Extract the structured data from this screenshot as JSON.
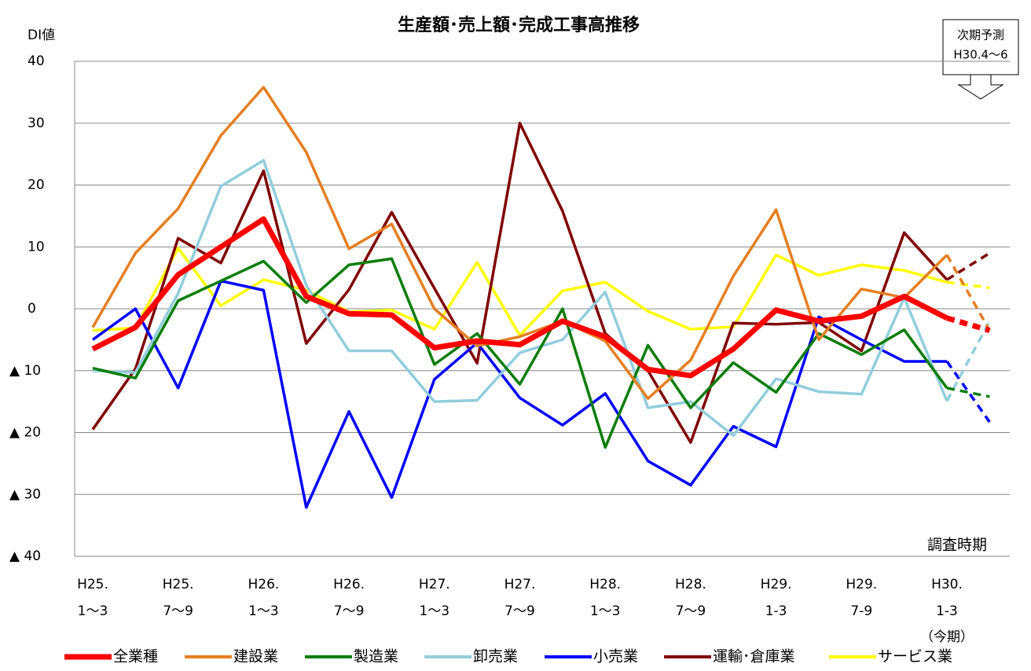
{
  "chart_data": {
    "type": "line",
    "title": "生産額･売上額･完成工事高推移",
    "y_label": "DI値",
    "x_label": "調査時期",
    "forecast_label": [
      "次期予測",
      "H30.4〜6"
    ],
    "categories": [
      "H25.\n1〜3",
      null,
      "H25.\n7〜9",
      null,
      "H26.\n1〜3",
      null,
      "H26.\n7〜9",
      null,
      "H27.\n1〜3",
      null,
      "H27.\n7〜9",
      null,
      "H28.\n1〜3",
      null,
      "H28.\n7〜9",
      null,
      "H29.\n1-3",
      null,
      "H29.\n7-9",
      null,
      "H30.\n1-3\n（今期）",
      null
    ],
    "dashed_from_index": 20,
    "ylim": [
      -40,
      40
    ],
    "yticks": [
      {
        "value": -40,
        "label": "▲ 40"
      },
      {
        "value": -30,
        "label": "▲ 30"
      },
      {
        "value": -20,
        "label": "▲ 20"
      },
      {
        "value": -10,
        "label": "▲ 10"
      },
      0,
      10,
      20,
      30,
      40
    ],
    "grid": true,
    "legend": "bottom",
    "series": [
      {
        "name": "全業種",
        "color": "#ff0000",
        "width": 7,
        "values": [
          -6.5,
          -3,
          5.5,
          10,
          14.5,
          2,
          -0.8,
          -1,
          -6.3,
          -5.2,
          -5.8,
          -2,
          -4.5,
          -9.8,
          -10.8,
          -6.5,
          -0.2,
          -2,
          -1.2,
          2,
          -1.5,
          -3.5
        ]
      },
      {
        "name": "建設業",
        "color": "#e67e22",
        "width": 3.5,
        "values": [
          -3,
          9,
          16.2,
          28,
          35.8,
          25.3,
          9.7,
          13.7,
          0,
          -6,
          -4.5,
          -2,
          -5.2,
          -14.5,
          -8.3,
          5.3,
          16,
          -5,
          3.2,
          1.8,
          8.7,
          -3.5
        ]
      },
      {
        "name": "製造業",
        "color": "#0a7d0a",
        "width": 3.5,
        "values": [
          -9.6,
          -11.2,
          1.3,
          4.5,
          7.7,
          1,
          7.1,
          8.1,
          -9,
          -4,
          -12.2,
          0,
          -22.4,
          -5.9,
          -16,
          -8.7,
          -13.5,
          -4,
          -7.4,
          -3.4,
          -12.8,
          -14.2
        ]
      },
      {
        "name": "卸売業",
        "color": "#92cddc",
        "width": 3.5,
        "values": [
          -10,
          -10.3,
          2.5,
          19.8,
          24,
          3.8,
          -6.8,
          -6.8,
          -15,
          -14.8,
          -7.1,
          -5,
          2.7,
          -16,
          -15,
          -20.5,
          -11.3,
          -13.4,
          -13.8,
          1.8,
          -14.9,
          -2
        ]
      },
      {
        "name": "小売業",
        "color": "#0000ff",
        "width": 3.5,
        "values": [
          -5,
          0,
          -12.8,
          4.5,
          3,
          -32.1,
          -16.6,
          -30.5,
          -11.4,
          -5.5,
          -14.4,
          -18.8,
          -13.7,
          -24.6,
          -28.5,
          -19,
          -22.3,
          -1.3,
          -5,
          -8.5,
          -8.5,
          -18.3
        ]
      },
      {
        "name": "運輸･倉庫業",
        "color": "#800000",
        "width": 3.5,
        "values": [
          -19.5,
          -9.7,
          11.4,
          7.4,
          22.3,
          -5.6,
          3.1,
          15.6,
          3.3,
          -8.8,
          30,
          15.8,
          -4,
          -10,
          -21.6,
          -2.3,
          -2.5,
          -2.2,
          -6.8,
          12.3,
          4.7,
          9
        ]
      },
      {
        "name": "サービス業",
        "color": "#ffff00",
        "width": 3.5,
        "values": [
          -3.5,
          -3.1,
          9.8,
          0.5,
          4.7,
          3,
          -0.5,
          -0.2,
          -3.3,
          7.5,
          -4.3,
          2.9,
          4.3,
          -0.4,
          -3.3,
          -2.9,
          8.7,
          5.4,
          7.1,
          6.2,
          4.3,
          3.4
        ]
      }
    ]
  }
}
